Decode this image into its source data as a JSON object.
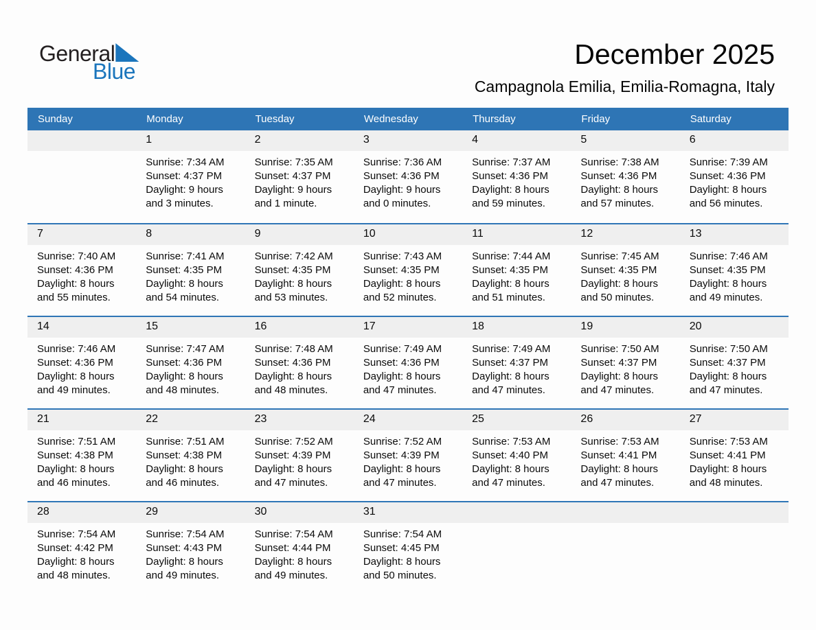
{
  "logo": {
    "part1": "General",
    "part2": "Blue",
    "triangle_icon": "blue-triangle",
    "color_black": "#231F20",
    "color_blue": "#1B75BC"
  },
  "header": {
    "title": "December 2025",
    "location": "Campagnola Emilia, Emilia-Romagna, Italy"
  },
  "colors": {
    "header_bar": "#2E75B5",
    "row_divider": "#2E75B6",
    "day_strip": "#EFEFEF",
    "header_text": "#FFFFFF"
  },
  "calendar": {
    "weekdays": [
      "Sunday",
      "Monday",
      "Tuesday",
      "Wednesday",
      "Thursday",
      "Friday",
      "Saturday"
    ],
    "weeks": [
      [
        null,
        {
          "day": "1",
          "lines": [
            "Sunrise: 7:34 AM",
            "Sunset: 4:37 PM",
            "Daylight: 9 hours",
            "and 3 minutes."
          ]
        },
        {
          "day": "2",
          "lines": [
            "Sunrise: 7:35 AM",
            "Sunset: 4:37 PM",
            "Daylight: 9 hours",
            "and 1 minute."
          ]
        },
        {
          "day": "3",
          "lines": [
            "Sunrise: 7:36 AM",
            "Sunset: 4:36 PM",
            "Daylight: 9 hours",
            "and 0 minutes."
          ]
        },
        {
          "day": "4",
          "lines": [
            "Sunrise: 7:37 AM",
            "Sunset: 4:36 PM",
            "Daylight: 8 hours",
            "and 59 minutes."
          ]
        },
        {
          "day": "5",
          "lines": [
            "Sunrise: 7:38 AM",
            "Sunset: 4:36 PM",
            "Daylight: 8 hours",
            "and 57 minutes."
          ]
        },
        {
          "day": "6",
          "lines": [
            "Sunrise: 7:39 AM",
            "Sunset: 4:36 PM",
            "Daylight: 8 hours",
            "and 56 minutes."
          ]
        }
      ],
      [
        {
          "day": "7",
          "lines": [
            "Sunrise: 7:40 AM",
            "Sunset: 4:36 PM",
            "Daylight: 8 hours",
            "and 55 minutes."
          ]
        },
        {
          "day": "8",
          "lines": [
            "Sunrise: 7:41 AM",
            "Sunset: 4:35 PM",
            "Daylight: 8 hours",
            "and 54 minutes."
          ]
        },
        {
          "day": "9",
          "lines": [
            "Sunrise: 7:42 AM",
            "Sunset: 4:35 PM",
            "Daylight: 8 hours",
            "and 53 minutes."
          ]
        },
        {
          "day": "10",
          "lines": [
            "Sunrise: 7:43 AM",
            "Sunset: 4:35 PM",
            "Daylight: 8 hours",
            "and 52 minutes."
          ]
        },
        {
          "day": "11",
          "lines": [
            "Sunrise: 7:44 AM",
            "Sunset: 4:35 PM",
            "Daylight: 8 hours",
            "and 51 minutes."
          ]
        },
        {
          "day": "12",
          "lines": [
            "Sunrise: 7:45 AM",
            "Sunset: 4:35 PM",
            "Daylight: 8 hours",
            "and 50 minutes."
          ]
        },
        {
          "day": "13",
          "lines": [
            "Sunrise: 7:46 AM",
            "Sunset: 4:35 PM",
            "Daylight: 8 hours",
            "and 49 minutes."
          ]
        }
      ],
      [
        {
          "day": "14",
          "lines": [
            "Sunrise: 7:46 AM",
            "Sunset: 4:36 PM",
            "Daylight: 8 hours",
            "and 49 minutes."
          ]
        },
        {
          "day": "15",
          "lines": [
            "Sunrise: 7:47 AM",
            "Sunset: 4:36 PM",
            "Daylight: 8 hours",
            "and 48 minutes."
          ]
        },
        {
          "day": "16",
          "lines": [
            "Sunrise: 7:48 AM",
            "Sunset: 4:36 PM",
            "Daylight: 8 hours",
            "and 48 minutes."
          ]
        },
        {
          "day": "17",
          "lines": [
            "Sunrise: 7:49 AM",
            "Sunset: 4:36 PM",
            "Daylight: 8 hours",
            "and 47 minutes."
          ]
        },
        {
          "day": "18",
          "lines": [
            "Sunrise: 7:49 AM",
            "Sunset: 4:37 PM",
            "Daylight: 8 hours",
            "and 47 minutes."
          ]
        },
        {
          "day": "19",
          "lines": [
            "Sunrise: 7:50 AM",
            "Sunset: 4:37 PM",
            "Daylight: 8 hours",
            "and 47 minutes."
          ]
        },
        {
          "day": "20",
          "lines": [
            "Sunrise: 7:50 AM",
            "Sunset: 4:37 PM",
            "Daylight: 8 hours",
            "and 47 minutes."
          ]
        }
      ],
      [
        {
          "day": "21",
          "lines": [
            "Sunrise: 7:51 AM",
            "Sunset: 4:38 PM",
            "Daylight: 8 hours",
            "and 46 minutes."
          ]
        },
        {
          "day": "22",
          "lines": [
            "Sunrise: 7:51 AM",
            "Sunset: 4:38 PM",
            "Daylight: 8 hours",
            "and 46 minutes."
          ]
        },
        {
          "day": "23",
          "lines": [
            "Sunrise: 7:52 AM",
            "Sunset: 4:39 PM",
            "Daylight: 8 hours",
            "and 47 minutes."
          ]
        },
        {
          "day": "24",
          "lines": [
            "Sunrise: 7:52 AM",
            "Sunset: 4:39 PM",
            "Daylight: 8 hours",
            "and 47 minutes."
          ]
        },
        {
          "day": "25",
          "lines": [
            "Sunrise: 7:53 AM",
            "Sunset: 4:40 PM",
            "Daylight: 8 hours",
            "and 47 minutes."
          ]
        },
        {
          "day": "26",
          "lines": [
            "Sunrise: 7:53 AM",
            "Sunset: 4:41 PM",
            "Daylight: 8 hours",
            "and 47 minutes."
          ]
        },
        {
          "day": "27",
          "lines": [
            "Sunrise: 7:53 AM",
            "Sunset: 4:41 PM",
            "Daylight: 8 hours",
            "and 48 minutes."
          ]
        }
      ],
      [
        {
          "day": "28",
          "lines": [
            "Sunrise: 7:54 AM",
            "Sunset: 4:42 PM",
            "Daylight: 8 hours",
            "and 48 minutes."
          ]
        },
        {
          "day": "29",
          "lines": [
            "Sunrise: 7:54 AM",
            "Sunset: 4:43 PM",
            "Daylight: 8 hours",
            "and 49 minutes."
          ]
        },
        {
          "day": "30",
          "lines": [
            "Sunrise: 7:54 AM",
            "Sunset: 4:44 PM",
            "Daylight: 8 hours",
            "and 49 minutes."
          ]
        },
        {
          "day": "31",
          "lines": [
            "Sunrise: 7:54 AM",
            "Sunset: 4:45 PM",
            "Daylight: 8 hours",
            "and 50 minutes."
          ]
        },
        null,
        null,
        null
      ]
    ]
  }
}
